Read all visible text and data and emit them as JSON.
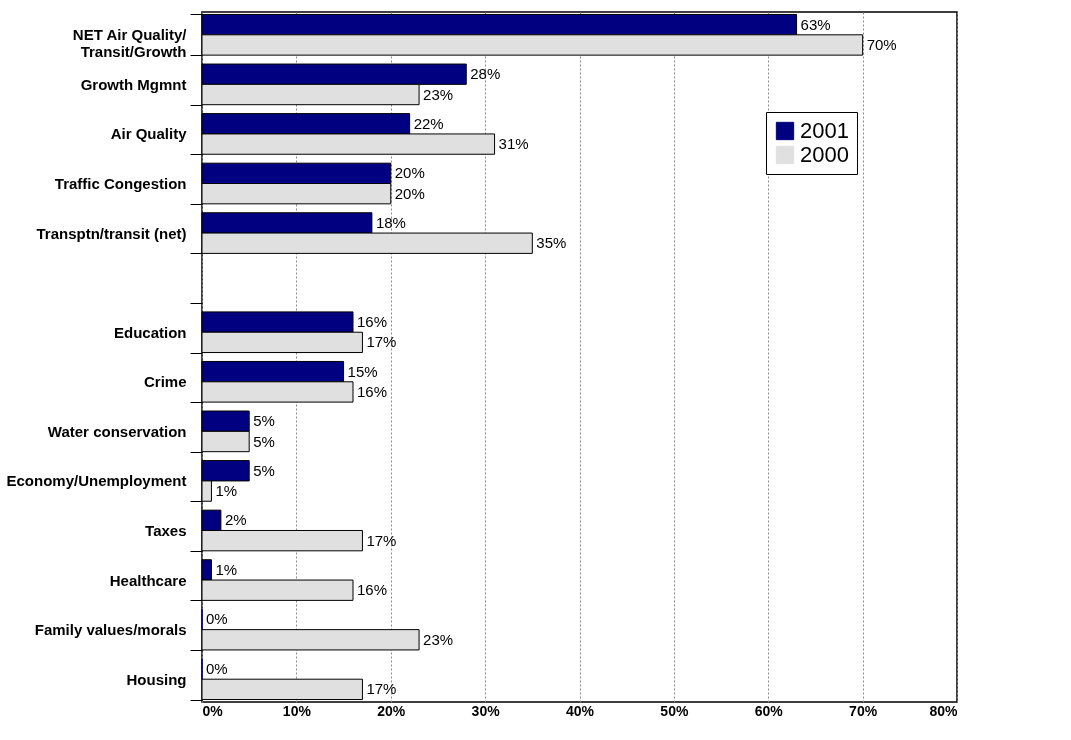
{
  "chart_data": {
    "type": "bar",
    "orientation": "horizontal",
    "categories": [
      "NET Air Quality/\nTransit/Growth",
      "Growth Mgmnt",
      "Air Quality",
      "Traffic Congestion",
      "Transptn/transit (net)",
      null,
      "Education",
      "Crime",
      "Water conservation",
      "Economy/Unemployment",
      "Taxes",
      "Healthcare",
      "Family values/morals",
      "Housing"
    ],
    "series": [
      {
        "name": "2001",
        "color": "#000080",
        "values": [
          63,
          28,
          22,
          20,
          18,
          null,
          16,
          15,
          5,
          5,
          2,
          1,
          0,
          0
        ],
        "value_labels": [
          "63%",
          "28%",
          "22%",
          "20%",
          "18%",
          null,
          "16%",
          "15%",
          "5%",
          "5%",
          "2%",
          "1%",
          "0%",
          "0%"
        ]
      },
      {
        "name": "2000",
        "color": "#e0e0e0",
        "values": [
          70,
          23,
          31,
          20,
          35,
          null,
          17,
          16,
          5,
          1,
          17,
          16,
          23,
          17
        ],
        "value_labels": [
          "70%",
          "23%",
          "31%",
          "20%",
          "35%",
          null,
          "17%",
          "16%",
          "5%",
          "1%",
          "17%",
          "16%",
          "23%",
          "17%"
        ]
      }
    ],
    "xlim": [
      0,
      80
    ],
    "xticks": [
      {
        "value": 0,
        "label": "0%"
      },
      {
        "value": 10,
        "label": "10%"
      },
      {
        "value": 20,
        "label": "20%"
      },
      {
        "value": 30,
        "label": "30%"
      },
      {
        "value": 40,
        "label": "40%"
      },
      {
        "value": 50,
        "label": "50%"
      },
      {
        "value": 60,
        "label": "60%"
      },
      {
        "value": 70,
        "label": "70%"
      },
      {
        "value": 80,
        "label": "80%"
      }
    ],
    "grid": "x",
    "legend": "top right"
  }
}
